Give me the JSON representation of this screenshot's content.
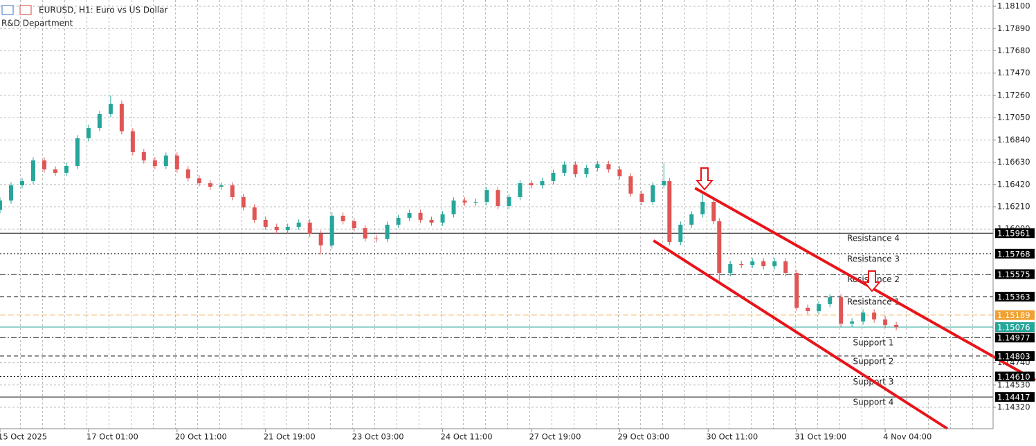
{
  "chart_data": {
    "type": "candlestick",
    "title": "EURUSD, H1:  Euro vs US Dollar",
    "subtitle": "R&D Department",
    "x": [
      0,
      4,
      8,
      12,
      16,
      20,
      24,
      28,
      32,
      36,
      40,
      44,
      48,
      52,
      56,
      60,
      64,
      68,
      72,
      76,
      80,
      84,
      88,
      92,
      96,
      100,
      104,
      108,
      112,
      116,
      120,
      124,
      128,
      132,
      136,
      140,
      144,
      148,
      152,
      156,
      160,
      164,
      168,
      172,
      176,
      180,
      184,
      188,
      192,
      196,
      200,
      204,
      208,
      212,
      216,
      220,
      224,
      228,
      232,
      236,
      240,
      242,
      246,
      250,
      254,
      258,
      260,
      264,
      268,
      272,
      276,
      280,
      284,
      288,
      292,
      296,
      300,
      304,
      308,
      312,
      316,
      320,
      324
    ],
    "open": [
      1.1618,
      1.16269,
      1.16412,
      1.16452,
      1.16647,
      1.16562,
      1.1653,
      1.16595,
      1.16856,
      1.16953,
      1.17084,
      1.17181,
      1.16921,
      1.16725,
      1.16647,
      1.16595,
      1.16693,
      1.16562,
      1.16478,
      1.16432,
      1.16399,
      1.16412,
      1.16302,
      1.16204,
      1.16087,
      1.16021,
      1.15989,
      1.16021,
      1.16061,
      1.15956,
      1.15846,
      1.16126,
      1.16074,
      1.16008,
      1.15911,
      1.15905,
      1.16041,
      1.16106,
      1.16152,
      1.16087,
      1.16061,
      1.16139,
      1.16269,
      1.1625,
      1.16256,
      1.16367,
      1.16217,
      1.16302,
      1.16432,
      1.16412,
      1.16452,
      1.1653,
      1.16608,
      1.16517,
      1.16575,
      1.16612,
      1.16562,
      1.16497,
      1.16334,
      1.16256,
      1.16412,
      1.16452,
      1.15878,
      1.16041,
      1.16139,
      1.16256,
      1.16074,
      1.15585,
      1.1567,
      1.15662,
      1.15696,
      1.1565,
      1.15696,
      1.15585,
      1.15259,
      1.15226,
      1.15292,
      1.15357,
      1.15109,
      1.15129,
      1.15213,
      1.15148,
      1.15096
    ],
    "high": [
      1.16299,
      1.16442,
      1.16482,
      1.16677,
      1.16677,
      1.16592,
      1.16625,
      1.16886,
      1.16983,
      1.17114,
      1.1726,
      1.17211,
      1.16951,
      1.16755,
      1.16677,
      1.16723,
      1.16723,
      1.16592,
      1.16508,
      1.16462,
      1.16442,
      1.16442,
      1.16332,
      1.16234,
      1.16117,
      1.16051,
      1.16051,
      1.16091,
      1.16091,
      1.15986,
      1.16156,
      1.16156,
      1.16104,
      1.16038,
      1.15941,
      1.16071,
      1.16136,
      1.16182,
      1.16182,
      1.16117,
      1.16169,
      1.16299,
      1.16299,
      1.16286,
      1.16397,
      1.16397,
      1.16332,
      1.16462,
      1.16462,
      1.16482,
      1.1656,
      1.16638,
      1.16638,
      1.16605,
      1.16642,
      1.16642,
      1.16592,
      1.16527,
      1.16364,
      1.16442,
      1.1662,
      1.16482,
      1.16071,
      1.16169,
      1.1633,
      1.16286,
      1.16104,
      1.157,
      1.157,
      1.15726,
      1.15726,
      1.15726,
      1.15726,
      1.15615,
      1.15289,
      1.15322,
      1.15387,
      1.15387,
      1.15159,
      1.15243,
      1.15243,
      1.15178,
      1.15126
    ],
    "low": [
      1.1615,
      1.16239,
      1.16382,
      1.16422,
      1.16532,
      1.165,
      1.165,
      1.16565,
      1.16826,
      1.16923,
      1.17054,
      1.16891,
      1.16695,
      1.16617,
      1.16565,
      1.16565,
      1.16532,
      1.16448,
      1.16402,
      1.16369,
      1.16369,
      1.16272,
      1.16174,
      1.16057,
      1.15991,
      1.15959,
      1.15959,
      1.15991,
      1.15926,
      1.1576,
      1.15816,
      1.16044,
      1.15978,
      1.15881,
      1.15875,
      1.15875,
      1.16011,
      1.16076,
      1.16057,
      1.16031,
      1.16031,
      1.16109,
      1.1622,
      1.1622,
      1.16226,
      1.16187,
      1.16187,
      1.16272,
      1.16382,
      1.16382,
      1.16422,
      1.165,
      1.16487,
      1.16487,
      1.16545,
      1.16532,
      1.16467,
      1.16304,
      1.16226,
      1.16226,
      1.16382,
      1.15848,
      1.15848,
      1.16011,
      1.16109,
      1.16044,
      1.1549,
      1.15555,
      1.15632,
      1.15632,
      1.1562,
      1.1562,
      1.15555,
      1.15229,
      1.15196,
      1.15196,
      1.15262,
      1.15079,
      1.15079,
      1.15099,
      1.15118,
      1.15066,
      1.15046
    ],
    "close": [
      1.16269,
      1.16412,
      1.16452,
      1.16647,
      1.16562,
      1.1653,
      1.16595,
      1.16856,
      1.16953,
      1.17084,
      1.17181,
      1.16921,
      1.16725,
      1.16647,
      1.16595,
      1.16693,
      1.16562,
      1.16478,
      1.16432,
      1.16399,
      1.16412,
      1.16302,
      1.16204,
      1.16087,
      1.16021,
      1.15989,
      1.16021,
      1.16061,
      1.15956,
      1.15846,
      1.16126,
      1.16074,
      1.16008,
      1.15911,
      1.15905,
      1.16041,
      1.16106,
      1.16152,
      1.16087,
      1.16061,
      1.16139,
      1.16269,
      1.1625,
      1.16256,
      1.16367,
      1.16217,
      1.16302,
      1.16432,
      1.16412,
      1.16452,
      1.1653,
      1.16608,
      1.16517,
      1.16575,
      1.16612,
      1.16562,
      1.16497,
      1.16334,
      1.16256,
      1.16412,
      1.16452,
      1.15878,
      1.16041,
      1.16139,
      1.16256,
      1.16074,
      1.15585,
      1.1567,
      1.15662,
      1.15696,
      1.1565,
      1.15696,
      1.15585,
      1.15259,
      1.15226,
      1.15292,
      1.15357,
      1.15109,
      1.15129,
      1.15213,
      1.15148,
      1.15096,
      1.15076
    ],
    "up_color": "#26a69a",
    "down_color": "#e05555",
    "xlim": [
      0,
      359
    ],
    "xticks": [
      {
        "value": 0,
        "label": "15 Oct 2025"
      },
      {
        "value": 32,
        "label": "17 Oct 01:00"
      },
      {
        "value": 64,
        "label": "20 Oct 11:00"
      },
      {
        "value": 96,
        "label": "21 Oct 19:00"
      },
      {
        "value": 128,
        "label": "23 Oct 03:00"
      },
      {
        "value": 160,
        "label": "24 Oct 11:00"
      },
      {
        "value": 192,
        "label": "27 Oct 19:00"
      },
      {
        "value": 224,
        "label": "29 Oct 03:00"
      },
      {
        "value": 256,
        "label": "30 Oct 11:00"
      },
      {
        "value": 288,
        "label": "31 Oct 19:00"
      },
      {
        "value": 320,
        "label": "4 Nov 04:00"
      }
    ],
    "ylim": [
      1.14118,
      1.18159
    ],
    "yticks": [
      {
        "value": 1.181,
        "label": "1.18100"
      },
      {
        "value": 1.1789,
        "label": "1.17890"
      },
      {
        "value": 1.1768,
        "label": "1.17680"
      },
      {
        "value": 1.1747,
        "label": "1.17470"
      },
      {
        "value": 1.1726,
        "label": "1.17260"
      },
      {
        "value": 1.1705,
        "label": "1.17050"
      },
      {
        "value": 1.1684,
        "label": "1.16840"
      },
      {
        "value": 1.1663,
        "label": "1.16630"
      },
      {
        "value": 1.1642,
        "label": "1.16420"
      },
      {
        "value": 1.1621,
        "label": "1.16210"
      },
      {
        "value": 1.16,
        "label": "1.16000"
      },
      {
        "value": 1.1474,
        "label": "1.14740"
      },
      {
        "value": 1.1453,
        "label": "1.14530"
      },
      {
        "value": 1.1432,
        "label": "1.14320"
      }
    ],
    "grid": true,
    "levels": {
      "names": [
        "Resistance 4",
        "Resistance 3",
        "Resistance 2",
        "Resistance 1",
        "Support 1",
        "Support 2",
        "Support 3",
        "Support 4"
      ],
      "values": [
        1.15961,
        1.15768,
        1.15575,
        1.15363,
        1.14977,
        1.14803,
        1.1461,
        1.14417
      ],
      "value_labels": [
        "1.15961",
        "1.15768",
        "1.15575",
        "1.15363",
        "1.14977",
        "1.14803",
        "1.14610",
        "1.14417"
      ],
      "styles": [
        "solid",
        "dotted",
        "dashdot",
        "dashed",
        "dashdot",
        "dashed",
        "dotted",
        "solid"
      ]
    },
    "price_lines": {
      "values": [
        1.15189,
        1.15076
      ],
      "value_labels": [
        "1.15189",
        "1.15076"
      ],
      "colors": [
        "#f0a030",
        "#26a69a"
      ]
    },
    "trendlines": [
      {
        "x": [
          251.25,
          374.25
        ],
        "y": [
          1.16386,
          1.14575
        ]
      },
      {
        "x": [
          236.25,
          342.5
        ],
        "y": [
          1.15891,
          1.14118
        ]
      }
    ],
    "trend_color": "#e8141a"
  }
}
